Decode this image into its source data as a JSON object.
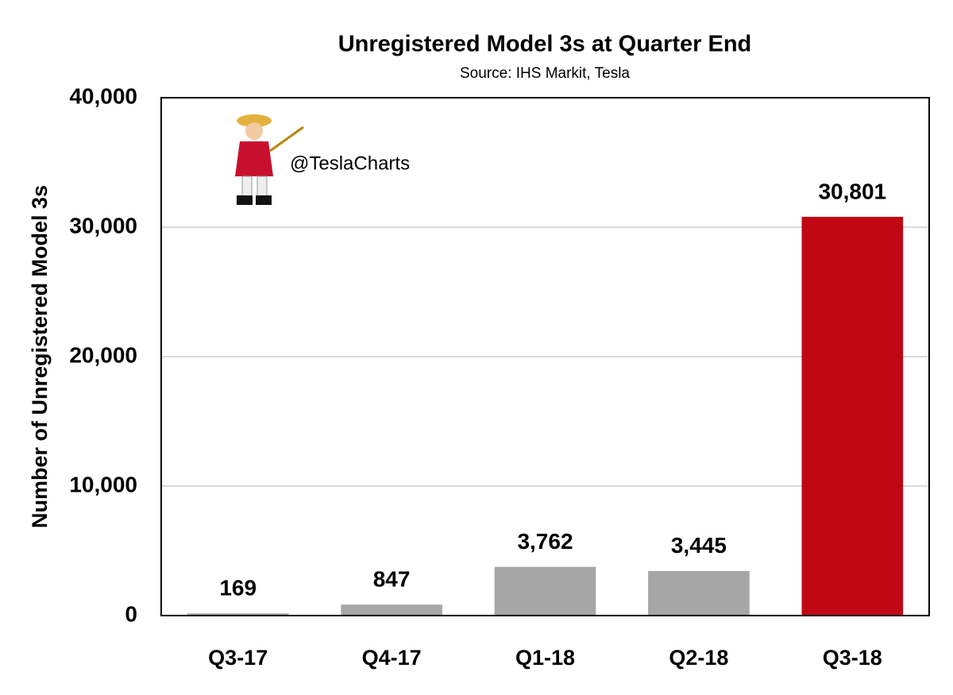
{
  "chart_data": {
    "type": "bar",
    "title": "Unregistered Model 3s at Quarter End",
    "subtitle": "Source: IHS Markit, Tesla",
    "y_label": "Number of Unregistered Model 3s",
    "annotation": "@TeslaCharts",
    "categories": [
      "Q3-17",
      "Q4-17",
      "Q1-18",
      "Q2-18",
      "Q3-18"
    ],
    "values": [
      169,
      847,
      3762,
      3445,
      30801
    ],
    "value_labels": [
      "169",
      "847",
      "3,762",
      "3,445",
      "30,801"
    ],
    "colors": [
      "#a6a6a6",
      "#a6a6a6",
      "#a6a6a6",
      "#a6a6a6",
      "#c00814"
    ],
    "ylim": [
      0,
      40000
    ],
    "yticks": [
      0,
      {
        "value": 10000,
        "label": "10,000"
      },
      {
        "value": 20000,
        "label": "20,000"
      },
      {
        "value": 30000,
        "label": "30,000"
      },
      {
        "value": 40000,
        "label": "40,000"
      }
    ],
    "grid": true
  }
}
